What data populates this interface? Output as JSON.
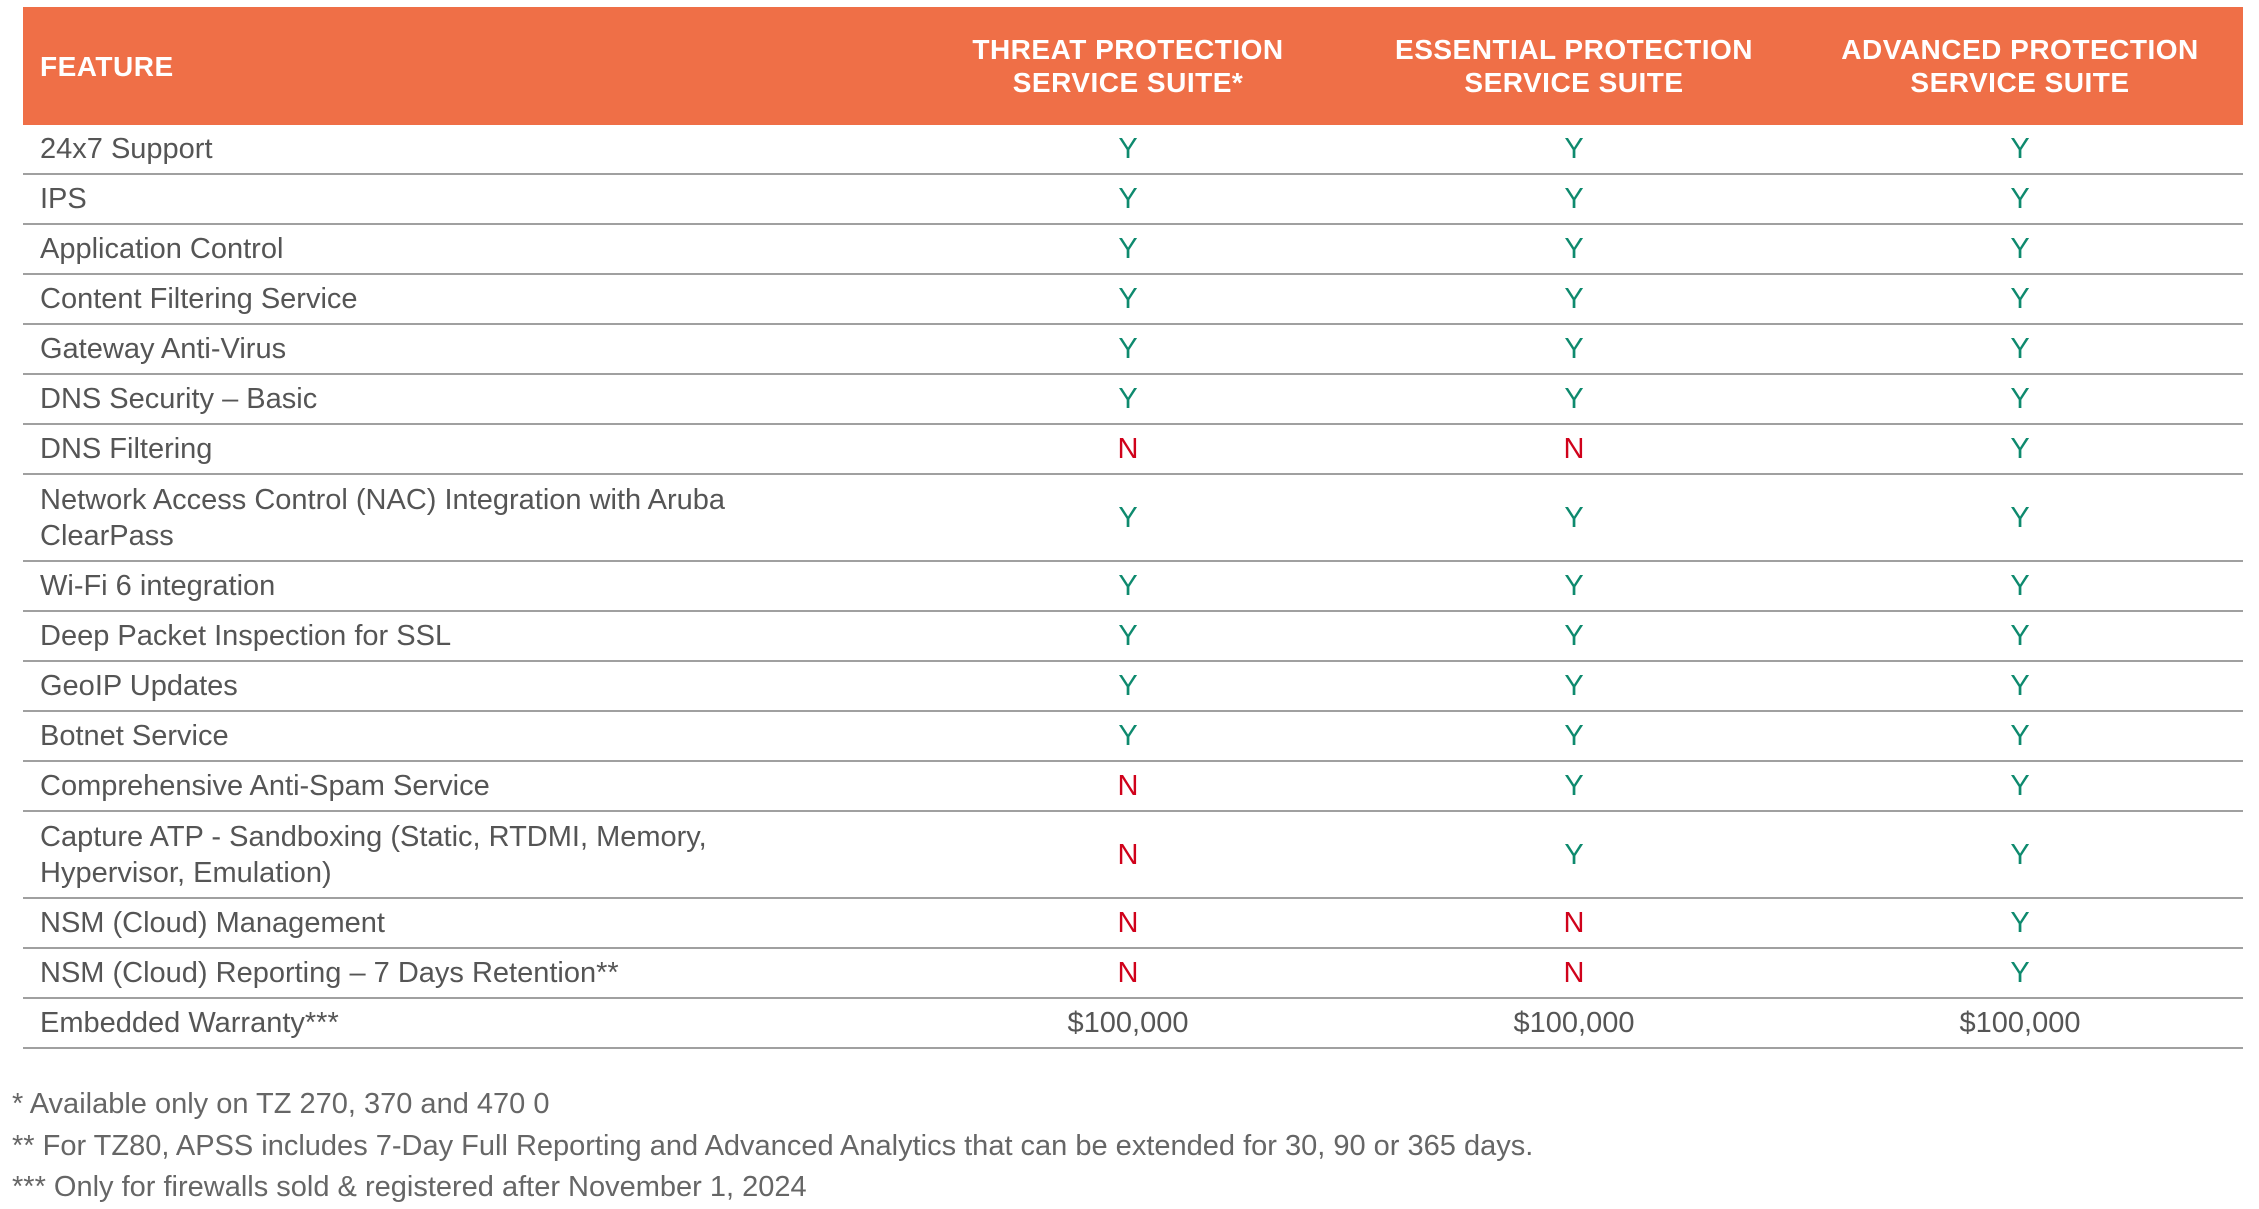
{
  "colors": {
    "header_bg": "#EF6F47",
    "yes": "#0E8A6E",
    "no": "#D0021B"
  },
  "headers": [
    "FEATURE",
    "THREAT PROTECTION SERVICE SUITE*",
    "ESSENTIAL PROTECTION SERVICE SUITE",
    "ADVANCED PROTECTION SERVICE SUITE"
  ],
  "rows": [
    {
      "feature": "24x7 Support",
      "values": [
        "Y",
        "Y",
        "Y"
      ]
    },
    {
      "feature": "IPS",
      "values": [
        "Y",
        "Y",
        "Y"
      ]
    },
    {
      "feature": "Application Control",
      "values": [
        "Y",
        "Y",
        "Y"
      ]
    },
    {
      "feature": "Content Filtering Service",
      "values": [
        "Y",
        "Y",
        "Y"
      ]
    },
    {
      "feature": "Gateway Anti-Virus",
      "values": [
        "Y",
        "Y",
        "Y"
      ]
    },
    {
      "feature": "DNS Security – Basic",
      "values": [
        "Y",
        "Y",
        "Y"
      ]
    },
    {
      "feature": "DNS Filtering",
      "values": [
        "N",
        "N",
        "Y"
      ]
    },
    {
      "feature": "Network Access Control (NAC) Integration with Aruba ClearPass",
      "values": [
        "Y",
        "Y",
        "Y"
      ],
      "tall": true
    },
    {
      "feature": "Wi-Fi 6 integration",
      "values": [
        "Y",
        "Y",
        "Y"
      ]
    },
    {
      "feature": "Deep Packet Inspection for SSL",
      "values": [
        "Y",
        "Y",
        "Y"
      ]
    },
    {
      "feature": "GeoIP Updates",
      "values": [
        "Y",
        "Y",
        "Y"
      ]
    },
    {
      "feature": "Botnet Service",
      "values": [
        "Y",
        "Y",
        "Y"
      ]
    },
    {
      "feature": "Comprehensive Anti-Spam Service",
      "values": [
        "N",
        "Y",
        "Y"
      ]
    },
    {
      "feature": "Capture ATP -  Sandboxing (Static, RTDMI, Memory, Hypervisor, Emulation)",
      "values": [
        "N",
        "Y",
        "Y"
      ],
      "tall": true
    },
    {
      "feature": "NSM (Cloud) Management",
      "values": [
        "N",
        "N",
        "Y"
      ]
    },
    {
      "feature": "NSM (Cloud) Reporting – 7 Days Retention**",
      "values": [
        "N",
        "N",
        "Y"
      ]
    },
    {
      "feature": "Embedded Warranty***",
      "values": [
        "$100,000",
        "$100,000",
        "$100,000"
      ]
    }
  ],
  "footnotes": [
    "* Available only on TZ 270, 370 and 470 0",
    "** For TZ80, APSS includes 7-Day Full Reporting and Advanced Analytics that can be extended for 30, 90 or 365 days.",
    "*** Only for firewalls sold & registered after November 1, 2024"
  ]
}
